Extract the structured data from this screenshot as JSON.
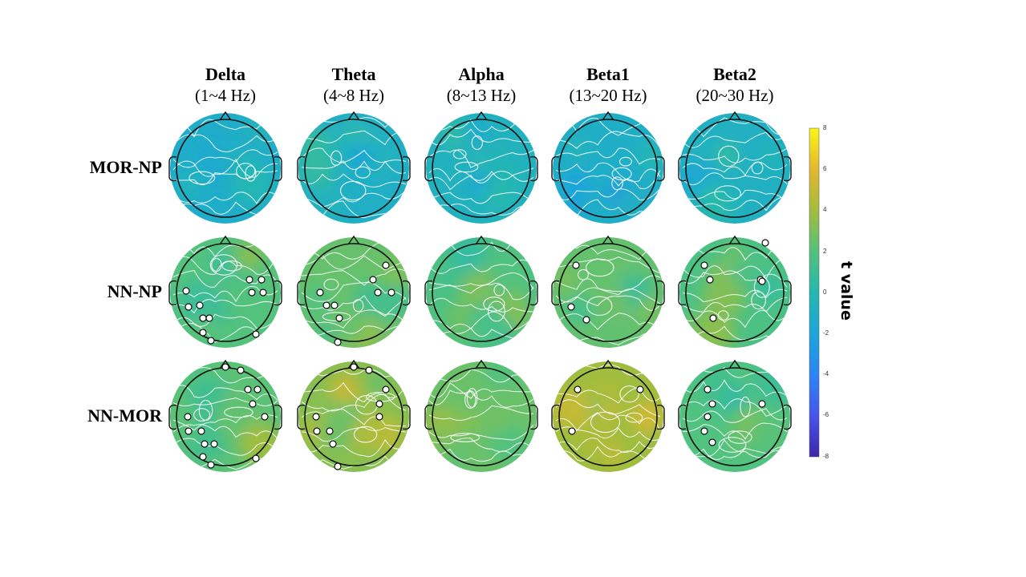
{
  "bands": [
    {
      "name": "Delta",
      "range": "(1~4 Hz)"
    },
    {
      "name": "Theta",
      "range": "(4~8 Hz)"
    },
    {
      "name": "Alpha",
      "range": "(8~13 Hz)"
    },
    {
      "name": "Beta1",
      "range": "(13~20 Hz)"
    },
    {
      "name": "Beta2",
      "range": "(20~30 Hz)"
    }
  ],
  "comparisons": [
    {
      "label": "MOR-NP"
    },
    {
      "label": "NN-NP"
    },
    {
      "label": "NN-MOR"
    }
  ],
  "colorbar": {
    "label": "t value",
    "ticks": [
      "8",
      "6",
      "4",
      "2",
      "0",
      "-2",
      "-4",
      "-6",
      "-8"
    ],
    "min": -8,
    "max": 8,
    "colormap": [
      "#3e26a8",
      "#4755ec",
      "#2c86f5",
      "#1ca5da",
      "#25b8b0",
      "#53c27c",
      "#a3bd3c",
      "#e5b72f",
      "#f9f618"
    ]
  },
  "maps": [
    [
      {
        "mean_t": -1.2
      },
      {
        "mean_t": -1.0
      },
      {
        "mean_t": -0.7
      },
      {
        "mean_t": -1.1
      },
      {
        "mean_t": -0.8
      }
    ],
    [
      {
        "mean_t": 2.0
      },
      {
        "mean_t": 2.5
      },
      {
        "mean_t": 1.8
      },
      {
        "mean_t": 2.4
      },
      {
        "mean_t": 1.7
      }
    ],
    [
      {
        "mean_t": 2.2
      },
      {
        "mean_t": 3.3
      },
      {
        "mean_t": 2.6
      },
      {
        "mean_t": 3.9
      },
      {
        "mean_t": 1.9
      }
    ]
  ]
}
